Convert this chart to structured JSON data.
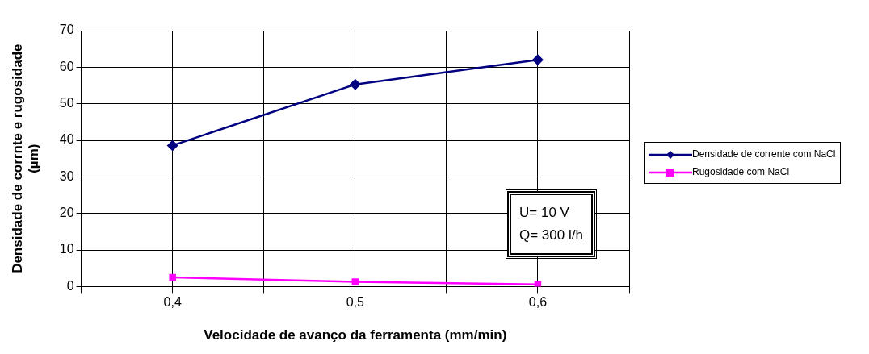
{
  "chart_data": {
    "type": "line",
    "xlabel": "Velocidade de avanço da ferramenta (mm/min)",
    "ylabel": "Densidade de corrnte e rugosidade (µm)",
    "x": [
      0.4,
      0.5,
      0.6
    ],
    "series": [
      {
        "name": "Densidade de corrente com NaCl",
        "color": "#000080",
        "values": [
          38.6,
          55.3,
          62
        ],
        "marker": "diamond"
      },
      {
        "name": "Rugosidade com NaCl",
        "color": "#ff00ff",
        "values": [
          2.5,
          1.3,
          0.6
        ],
        "marker": "square"
      }
    ],
    "xlim": [
      0.35,
      0.65
    ],
    "xticks": [
      {
        "value": 0.35,
        "label": null
      },
      {
        "value": 0.4,
        "label": "0,4"
      },
      {
        "value": 0.45,
        "label": null
      },
      {
        "value": 0.5,
        "label": "0,5"
      },
      {
        "value": 0.55,
        "label": null
      },
      {
        "value": 0.6,
        "label": "0,6"
      },
      {
        "value": 0.65,
        "label": null
      }
    ],
    "ylim": [
      0,
      70
    ],
    "yticks": [
      0,
      10,
      20,
      30,
      40,
      50,
      60,
      70
    ],
    "grid": true,
    "legend": "right",
    "line_style": "solid",
    "annotations": [
      "U= 10 V",
      "Q= 300 l/h"
    ]
  }
}
